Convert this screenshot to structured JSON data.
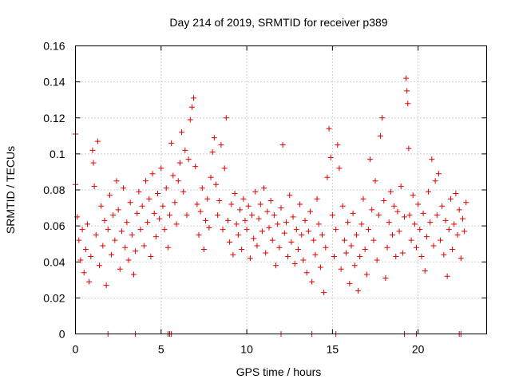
{
  "chart_data": {
    "type": "scatter",
    "title": "Day 214 of 2019, SRMTID for receiver p389",
    "xlabel": "GPS time / hours",
    "ylabel": "SRMTID / TECUs",
    "xlim": [
      0,
      24
    ],
    "ylim": [
      0,
      0.16
    ],
    "xticks": [
      0,
      5,
      10,
      15,
      20
    ],
    "yticks": [
      0,
      0.02,
      0.04,
      0.06,
      0.08,
      0.1,
      0.12,
      0.14,
      0.16
    ],
    "xtick_labels": [
      "0",
      "5",
      "10",
      "15",
      "20"
    ],
    "ytick_labels": [
      "0",
      "0.02",
      "0.04",
      "0.06",
      "0.08",
      "0.1",
      "0.12",
      "0.14",
      "0.16"
    ],
    "grid": true,
    "marker": "+",
    "series_color": "#e00000",
    "points": [
      [
        0.0,
        0.111
      ],
      [
        0.0,
        0.083
      ],
      [
        0.1,
        0.065
      ],
      [
        0.2,
        0.052
      ],
      [
        0.3,
        0.041
      ],
      [
        0.4,
        0.058
      ],
      [
        0.5,
        0.034
      ],
      [
        0.6,
        0.047
      ],
      [
        0.7,
        0.061
      ],
      [
        0.8,
        0.029
      ],
      [
        0.9,
        0.043
      ],
      [
        1.0,
        0.102
      ],
      [
        1.05,
        0.095
      ],
      [
        1.1,
        0.082
      ],
      [
        1.2,
        0.055
      ],
      [
        1.3,
        0.107
      ],
      [
        1.4,
        0.038
      ],
      [
        1.5,
        0.071
      ],
      [
        1.6,
        0.049
      ],
      [
        1.7,
        0.063
      ],
      [
        1.8,
        0.027
      ],
      [
        1.9,
        0.058
      ],
      [
        2.0,
        0.077
      ],
      [
        2.1,
        0.044
      ],
      [
        2.2,
        0.066
      ],
      [
        2.3,
        0.052
      ],
      [
        2.4,
        0.085
      ],
      [
        2.5,
        0.069
      ],
      [
        2.6,
        0.036
      ],
      [
        2.7,
        0.057
      ],
      [
        2.8,
        0.081
      ],
      [
        2.9,
        0.048
      ],
      [
        3.0,
        0.062
      ],
      [
        3.1,
        0.041
      ],
      [
        3.2,
        0.073
      ],
      [
        3.3,
        0.055
      ],
      [
        3.4,
        0.033
      ],
      [
        3.5,
        0.046
      ],
      [
        3.6,
        0.067
      ],
      [
        3.7,
        0.079
      ],
      [
        3.8,
        0.058
      ],
      [
        3.9,
        0.071
      ],
      [
        4.0,
        0.049
      ],
      [
        4.1,
        0.085
      ],
      [
        4.2,
        0.062
      ],
      [
        4.3,
        0.075
      ],
      [
        4.4,
        0.043
      ],
      [
        4.5,
        0.089
      ],
      [
        4.6,
        0.067
      ],
      [
        4.7,
        0.054
      ],
      [
        4.8,
        0.078
      ],
      [
        4.9,
        0.064
      ],
      [
        5.0,
        0.092
      ],
      [
        5.1,
        0.071
      ],
      [
        5.2,
        0.058
      ],
      [
        5.3,
        0.081
      ],
      [
        5.4,
        0.048
      ],
      [
        5.5,
        0.066
      ],
      [
        5.6,
        0.106
      ],
      [
        5.7,
        0.088
      ],
      [
        5.8,
        0.073
      ],
      [
        5.9,
        0.061
      ],
      [
        6.0,
        0.085
      ],
      [
        6.1,
        0.095
      ],
      [
        6.2,
        0.112
      ],
      [
        6.3,
        0.079
      ],
      [
        6.4,
        0.102
      ],
      [
        6.5,
        0.066
      ],
      [
        6.6,
        0.097
      ],
      [
        6.7,
        0.119
      ],
      [
        6.8,
        0.126
      ],
      [
        6.9,
        0.131
      ],
      [
        7.0,
        0.093
      ],
      [
        7.1,
        0.072
      ],
      [
        7.2,
        0.055
      ],
      [
        7.3,
        0.068
      ],
      [
        7.4,
        0.081
      ],
      [
        7.5,
        0.047
      ],
      [
        7.6,
        0.063
      ],
      [
        7.7,
        0.075
      ],
      [
        7.8,
        0.059
      ],
      [
        7.9,
        0.087
      ],
      [
        8.0,
        0.101
      ],
      [
        8.1,
        0.109
      ],
      [
        8.2,
        0.083
      ],
      [
        8.3,
        0.066
      ],
      [
        8.4,
        0.074
      ],
      [
        8.5,
        0.105
      ],
      [
        8.6,
        0.058
      ],
      [
        8.7,
        0.092
      ],
      [
        8.8,
        0.12
      ],
      [
        8.9,
        0.063
      ],
      [
        9.0,
        0.051
      ],
      [
        9.1,
        0.072
      ],
      [
        9.2,
        0.044
      ],
      [
        9.3,
        0.078
      ],
      [
        9.4,
        0.061
      ],
      [
        9.5,
        0.055
      ],
      [
        9.6,
        0.069
      ],
      [
        9.7,
        0.047
      ],
      [
        9.8,
        0.075
      ],
      [
        9.9,
        0.063
      ],
      [
        10.0,
        0.058
      ],
      [
        10.1,
        0.071
      ],
      [
        10.2,
        0.042
      ],
      [
        10.3,
        0.066
      ],
      [
        10.4,
        0.053
      ],
      [
        10.5,
        0.079
      ],
      [
        10.6,
        0.049
      ],
      [
        10.7,
        0.064
      ],
      [
        10.8,
        0.072
      ],
      [
        10.9,
        0.057
      ],
      [
        11.0,
        0.081
      ],
      [
        11.1,
        0.045
      ],
      [
        11.2,
        0.068
      ],
      [
        11.3,
        0.059
      ],
      [
        11.4,
        0.074
      ],
      [
        11.5,
        0.052
      ],
      [
        11.6,
        0.066
      ],
      [
        11.7,
        0.038
      ],
      [
        11.8,
        0.061
      ],
      [
        11.9,
        0.048
      ],
      [
        12.0,
        0.07
      ],
      [
        12.1,
        0.105
      ],
      [
        12.2,
        0.056
      ],
      [
        12.3,
        0.062
      ],
      [
        12.4,
        0.043
      ],
      [
        12.5,
        0.077
      ],
      [
        12.6,
        0.051
      ],
      [
        12.7,
        0.065
      ],
      [
        12.8,
        0.039
      ],
      [
        12.9,
        0.058
      ],
      [
        13.0,
        0.047
      ],
      [
        13.1,
        0.072
      ],
      [
        13.2,
        0.055
      ],
      [
        13.3,
        0.041
      ],
      [
        13.4,
        0.063
      ],
      [
        13.5,
        0.034
      ],
      [
        13.6,
        0.057
      ],
      [
        13.7,
        0.068
      ],
      [
        13.8,
        0.029
      ],
      [
        13.9,
        0.052
      ],
      [
        14.0,
        0.044
      ],
      [
        14.1,
        0.075
      ],
      [
        14.2,
        0.061
      ],
      [
        14.3,
        0.037
      ],
      [
        14.4,
        0.055
      ],
      [
        14.5,
        0.023
      ],
      [
        14.6,
        0.048
      ],
      [
        14.7,
        0.087
      ],
      [
        14.8,
        0.114
      ],
      [
        14.9,
        0.098
      ],
      [
        15.0,
        0.066
      ],
      [
        15.1,
        0.043
      ],
      [
        15.2,
        0.058
      ],
      [
        15.3,
        0.105
      ],
      [
        15.4,
        0.092
      ],
      [
        15.5,
        0.036
      ],
      [
        15.6,
        0.071
      ],
      [
        15.7,
        0.052
      ],
      [
        15.8,
        0.045
      ],
      [
        15.9,
        0.062
      ],
      [
        16.0,
        0.028
      ],
      [
        16.1,
        0.049
      ],
      [
        16.2,
        0.067
      ],
      [
        16.3,
        0.038
      ],
      [
        16.4,
        0.055
      ],
      [
        16.5,
        0.024
      ],
      [
        16.6,
        0.043
      ],
      [
        16.7,
        0.061
      ],
      [
        16.8,
        0.075
      ],
      [
        16.9,
        0.047
      ],
      [
        17.0,
        0.033
      ],
      [
        17.1,
        0.058
      ],
      [
        17.2,
        0.097
      ],
      [
        17.3,
        0.069
      ],
      [
        17.4,
        0.052
      ],
      [
        17.5,
        0.085
      ],
      [
        17.6,
        0.041
      ],
      [
        17.7,
        0.066
      ],
      [
        17.8,
        0.11
      ],
      [
        17.9,
        0.12
      ],
      [
        18.0,
        0.074
      ],
      [
        18.1,
        0.031
      ],
      [
        18.2,
        0.048
      ],
      [
        18.3,
        0.062
      ],
      [
        18.4,
        0.079
      ],
      [
        18.5,
        0.055
      ],
      [
        18.6,
        0.071
      ],
      [
        18.7,
        0.043
      ],
      [
        18.8,
        0.068
      ],
      [
        18.9,
        0.057
      ],
      [
        19.0,
        0.082
      ],
      [
        19.1,
        0.045
      ],
      [
        19.2,
        0.065
      ],
      [
        19.3,
        0.142
      ],
      [
        19.35,
        0.135
      ],
      [
        19.4,
        0.128
      ],
      [
        19.45,
        0.103
      ],
      [
        19.5,
        0.066
      ],
      [
        19.6,
        0.052
      ],
      [
        19.7,
        0.077
      ],
      [
        19.8,
        0.061
      ],
      [
        19.9,
        0.048
      ],
      [
        20.0,
        0.072
      ],
      [
        20.1,
        0.058
      ],
      [
        20.2,
        0.043
      ],
      [
        20.3,
        0.067
      ],
      [
        20.4,
        0.035
      ],
      [
        20.5,
        0.054
      ],
      [
        20.6,
        0.079
      ],
      [
        20.7,
        0.062
      ],
      [
        20.8,
        0.097
      ],
      [
        20.9,
        0.049
      ],
      [
        21.0,
        0.085
      ],
      [
        21.1,
        0.066
      ],
      [
        21.2,
        0.089
      ],
      [
        21.3,
        0.052
      ],
      [
        21.4,
        0.071
      ],
      [
        21.5,
        0.044
      ],
      [
        21.6,
        0.063
      ],
      [
        21.7,
        0.032
      ],
      [
        21.8,
        0.058
      ],
      [
        21.9,
        0.075
      ],
      [
        22.0,
        0.047
      ],
      [
        22.1,
        0.061
      ],
      [
        22.2,
        0.078
      ],
      [
        22.3,
        0.055
      ],
      [
        22.4,
        0.069
      ],
      [
        22.5,
        0.042
      ],
      [
        22.6,
        0.064
      ],
      [
        22.7,
        0.057
      ],
      [
        22.8,
        0.073
      ]
    ],
    "zero_points": [
      1.9,
      3.5,
      5.4,
      5.5,
      5.6,
      12.0,
      13.8,
      15.2,
      19.2,
      19.9,
      22.4,
      22.5
    ]
  }
}
